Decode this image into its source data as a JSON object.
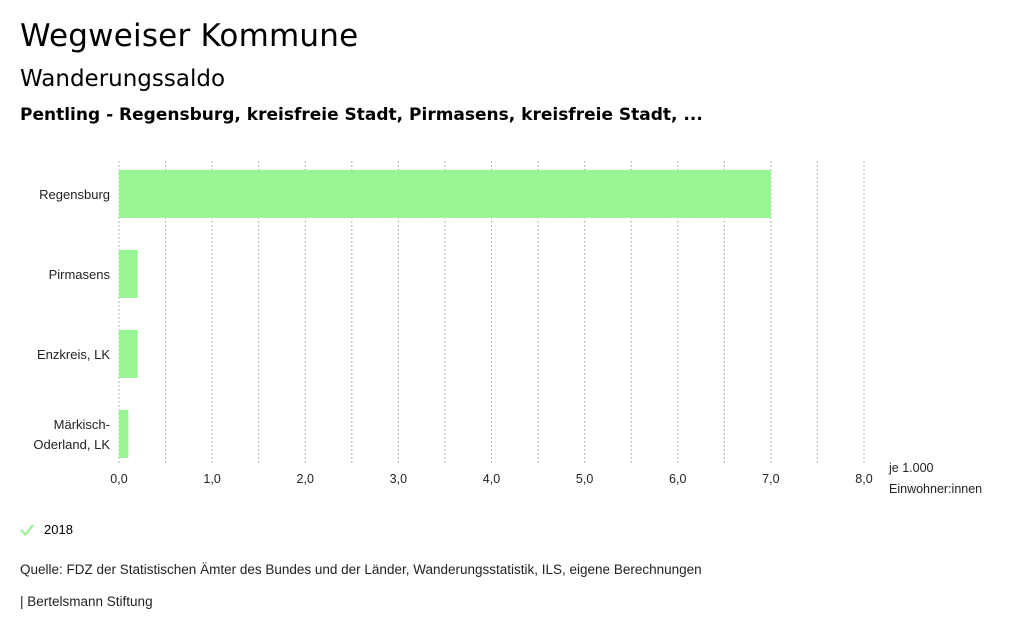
{
  "header": {
    "title": "Wegweiser Kommune",
    "subtitle": "Wanderungssaldo",
    "entities": "Pentling - Regensburg, kreisfreie Stadt, Pirmasens, kreisfreie Stadt, ..."
  },
  "chart_data": {
    "type": "bar",
    "orientation": "horizontal",
    "categories": [
      "Regensburg",
      "Pirmasens",
      "Enzkreis, LK",
      "Märkisch-Oderland, LK"
    ],
    "category_lines": [
      [
        "Regensburg"
      ],
      [
        "Pirmasens"
      ],
      [
        "Enzkreis, LK"
      ],
      [
        "Märkisch-",
        "Oderland, LK"
      ]
    ],
    "series": [
      {
        "name": "2018",
        "values": [
          7.0,
          0.2,
          0.2,
          0.1
        ]
      }
    ],
    "xlim": [
      0,
      8
    ],
    "xticks": [
      0,
      1,
      2,
      3,
      4,
      5,
      6,
      7,
      8
    ],
    "xtick_labels": [
      "0,0",
      "1,0",
      "2,0",
      "3,0",
      "4,0",
      "5,0",
      "6,0",
      "7,0",
      "8,0"
    ],
    "unit_label": [
      "je 1.000",
      "Einwohner:innen"
    ],
    "grid": "vertical dotted",
    "legend_position": "bottom-left",
    "bar_color": "#99f594"
  },
  "legend": {
    "label": "2018",
    "icon": "check-icon",
    "color": "#99f594"
  },
  "footer": {
    "source": "Quelle: FDZ der Statistischen Ämter des Bundes und der Länder, Wanderungsstatistik, ILS, eigene Berechnungen",
    "publisher": "| Bertelsmann Stiftung"
  }
}
